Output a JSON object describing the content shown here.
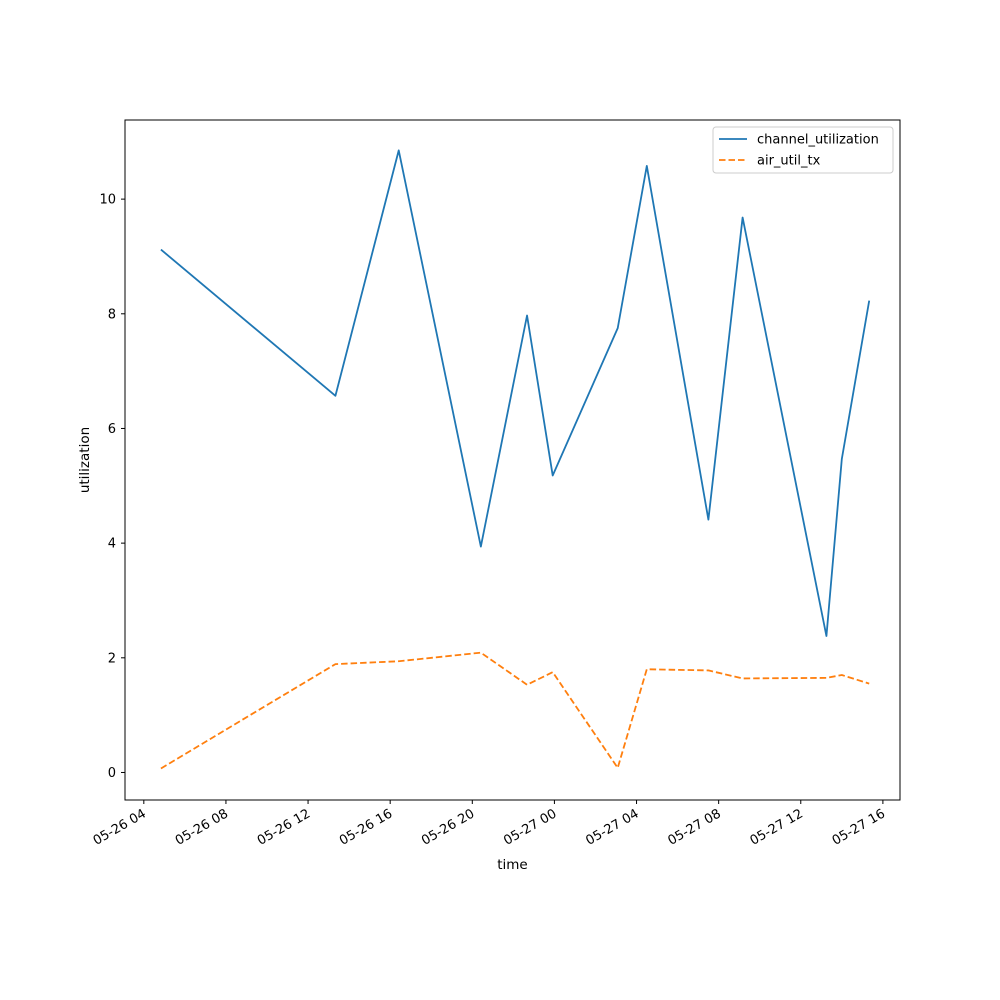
{
  "chart_data": {
    "type": "line",
    "title": "",
    "xlabel": "time",
    "ylabel": "utilization",
    "x_tick_labels": [
      "05-26 04",
      "05-26 08",
      "05-26 12",
      "05-26 16",
      "05-26 20",
      "05-27 00",
      "05-27 04",
      "05-27 08",
      "05-27 12",
      "05-27 16"
    ],
    "x_tick_hours": [
      4,
      8,
      12,
      16,
      20,
      24,
      28,
      32,
      36,
      40
    ],
    "x_hour_origin": "2024-05-26 00:00",
    "y_ticks": [
      0,
      2,
      4,
      6,
      8,
      10
    ],
    "xlim": [
      "05-26 03:05",
      "05-27 16:50"
    ],
    "ylim": [
      -0.48,
      11.38
    ],
    "grid": false,
    "legend_position": "top-right",
    "series": [
      {
        "name": "channel_utilization",
        "color": "#1f77b4",
        "dash": "solid",
        "x": [
          "05-26 04:50",
          "05-26 13:20",
          "05-26 16:25",
          "05-26 20:25",
          "05-26 22:40",
          "05-26 23:55",
          "05-27 03:05",
          "05-27 04:30",
          "05-27 07:30",
          "05-27 09:10",
          "05-27 13:15",
          "05-27 14:00",
          "05-27 15:20"
        ],
        "values": [
          9.12,
          6.57,
          10.85,
          3.94,
          7.97,
          5.18,
          7.75,
          10.58,
          4.41,
          9.68,
          2.38,
          5.47,
          8.23
        ]
      },
      {
        "name": "air_util_tx",
        "color": "#ff7f0e",
        "dash": "dashed",
        "x": [
          "05-26 04:50",
          "05-26 13:20",
          "05-26 16:25",
          "05-26 20:25",
          "05-26 22:40",
          "05-26 23:55",
          "05-27 03:05",
          "05-27 04:30",
          "05-27 07:30",
          "05-27 09:10",
          "05-27 13:15",
          "05-27 14:00",
          "05-27 15:20"
        ],
        "values": [
          0.07,
          1.89,
          1.94,
          2.09,
          1.53,
          1.75,
          0.08,
          1.8,
          1.78,
          1.64,
          1.65,
          1.7,
          1.55
        ]
      }
    ]
  }
}
